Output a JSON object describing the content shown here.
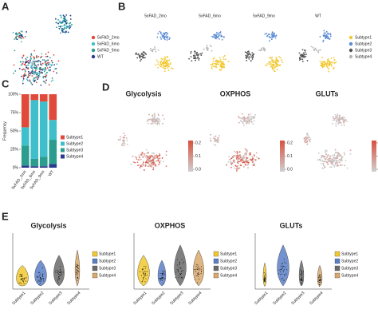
{
  "panels": {
    "A": {
      "letter": "A",
      "legend": [
        {
          "name": "5xFAD_2mo",
          "color": "#e04a3a"
        },
        {
          "name": "5xFAD_6mo",
          "color": "#3fbfc9"
        },
        {
          "name": "5xFAD_9mo",
          "color": "#2a9d8f"
        },
        {
          "name": "WT",
          "color": "#2b3a8c"
        }
      ]
    },
    "B": {
      "letter": "B",
      "titles": [
        "5xFAD_2mo",
        "5xFAD_6mo",
        "5xFAD_9mo",
        "WT"
      ],
      "legend": [
        {
          "name": "Subtype1",
          "color": "#f2c830"
        },
        {
          "name": "Subtype2",
          "color": "#5b8bd4"
        },
        {
          "name": "Subtype3",
          "color": "#555555"
        },
        {
          "name": "Subtype4",
          "color": "#b5b5b5"
        }
      ]
    },
    "C": {
      "letter": "C",
      "chart": {
        "type": "bar",
        "stacked": true,
        "ylabel": "Frequency",
        "categories": [
          "5xFAD_2mo",
          "5xFAD_6mo",
          "5xFAD_9mo",
          "WT"
        ],
        "series": [
          {
            "name": "Subtype1",
            "color": "#e04a3a",
            "values": [
              45,
              8,
              10,
              35
            ]
          },
          {
            "name": "Subtype2",
            "color": "#3fbfc9",
            "values": [
              25,
              80,
              75,
              27
            ]
          },
          {
            "name": "Subtype3",
            "color": "#2a9d8f",
            "values": [
              27,
              10,
              13,
              33
            ]
          },
          {
            "name": "Subtype4",
            "color": "#2b3a8c",
            "values": [
              3,
              2,
              2,
              5
            ]
          }
        ],
        "ylim": [
          0,
          100
        ],
        "yticks": [
          {
            "value": 0,
            "label": "0%"
          },
          {
            "value": 25,
            "label": "25%"
          },
          {
            "value": 50,
            "label": "50%"
          },
          {
            "value": 75,
            "label": "75%"
          },
          {
            "value": 100,
            "label": "100%"
          }
        ]
      }
    },
    "D": {
      "letter": "D",
      "titles": [
        "Glycolysis",
        "OXPHOS",
        "GLUTs"
      ],
      "colorbar_ticks": [
        {
          "value": 0.2,
          "label": "0.2"
        },
        {
          "value": 0.1,
          "label": "0.1"
        },
        {
          "value": 0,
          "label": "0.0"
        }
      ]
    },
    "E": {
      "letter": "E",
      "titles": [
        "Glycolysis",
        "OXPHOS",
        "GLUTs"
      ],
      "categories": [
        "Subtype1",
        "Subtype2",
        "Subtype3",
        "Subtype4"
      ],
      "legend": [
        {
          "name": "Subtype1",
          "color": "#f2c830"
        },
        {
          "name": "Subtype2",
          "color": "#5b7fc7"
        },
        {
          "name": "Subtype3",
          "color": "#6a6a6a"
        },
        {
          "name": "Subtype4",
          "color": "#d9a86c"
        }
      ]
    }
  }
}
